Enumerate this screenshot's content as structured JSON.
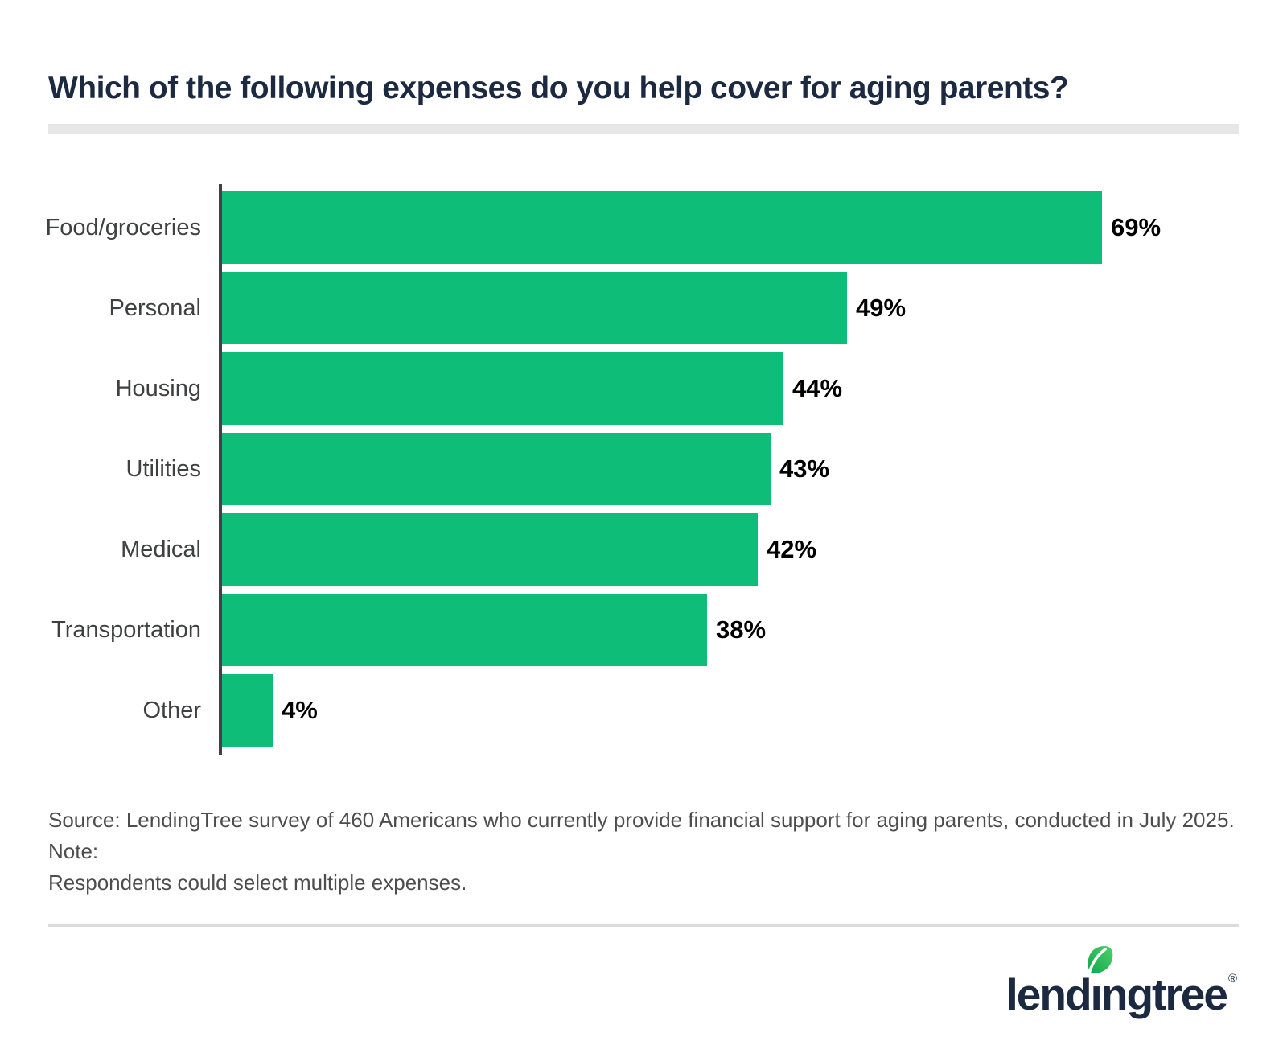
{
  "title": "Which of the following expenses do you help cover for aging parents?",
  "chart_data": {
    "type": "bar",
    "orientation": "horizontal",
    "categories": [
      "Food/groceries",
      "Personal",
      "Housing",
      "Utilities",
      "Medical",
      "Transportation",
      "Other"
    ],
    "values": [
      69,
      49,
      44,
      43,
      42,
      38,
      4
    ],
    "value_labels": [
      "69%",
      "49%",
      "44%",
      "43%",
      "42%",
      "38%",
      "4%"
    ],
    "title": "Which of the following expenses do you help cover for aging parents?",
    "xlabel": "",
    "ylabel": "",
    "xlim": [
      0,
      78
    ],
    "grid": false,
    "legend": false,
    "bar_color": "#0dbd78",
    "axis_color": "#414042",
    "value_label_color": "#000000",
    "category_label_color": "#3f4041"
  },
  "source_note": {
    "line1": "Source: LendingTree survey of 460 Americans who currently provide financial support for aging parents, conducted in July 2025. Note:",
    "line2": "Respondents could select multiple expenses."
  },
  "footer": {
    "brand": "lendingtree",
    "registered": "®",
    "leaf_icon": "leaf-icon"
  },
  "colors": {
    "title_navy": "#1b2a41",
    "bar_green": "#0dbd78",
    "leaf_green_dark": "#0fa64f",
    "leaf_green_light": "#4ed167",
    "underline_gray": "#e7e7e7",
    "divider_gray": "#dbdbdb",
    "source_text_gray": "#4d4d4d"
  }
}
